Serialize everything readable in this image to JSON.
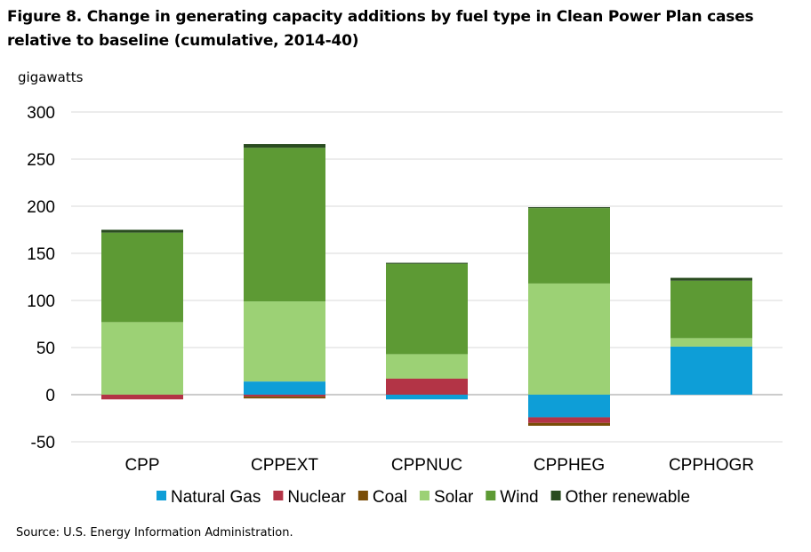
{
  "chart_data": {
    "type": "bar",
    "stacked": true,
    "title": "Figure 8. Change in generating capacity additions by fuel type in Clean Power Plan cases relative to baseline (cumulative, 2014-40)",
    "ylabel": "gigawatts",
    "source": "Source: U.S. Energy Information Administration.",
    "ylim": [
      -50,
      300
    ],
    "yticks": [
      -50,
      0,
      50,
      100,
      150,
      200,
      250,
      300
    ],
    "grid": true,
    "legend_position": "bottom",
    "categories": [
      "CPP",
      "CPPEXT",
      "CPPNUC",
      "CPPHEG",
      "CPPHOGR"
    ],
    "series": [
      {
        "name": "Natural Gas",
        "color": "#0E9ED7",
        "values": [
          0,
          14,
          -5,
          -24,
          51
        ]
      },
      {
        "name": "Nuclear",
        "color": "#B33446",
        "values": [
          -5,
          -2,
          17,
          -6,
          0
        ]
      },
      {
        "name": "Coal",
        "color": "#7A4D07",
        "values": [
          0,
          -2,
          0,
          -3,
          0
        ]
      },
      {
        "name": "Solar",
        "color": "#9CD175",
        "values": [
          77,
          85,
          26,
          118,
          9
        ]
      },
      {
        "name": "Wind",
        "color": "#5D9A34",
        "values": [
          95,
          163,
          96,
          80,
          61
        ]
      },
      {
        "name": "Other renewable",
        "color": "#2A4C20",
        "values": [
          3,
          4,
          1,
          1,
          3
        ]
      }
    ]
  }
}
